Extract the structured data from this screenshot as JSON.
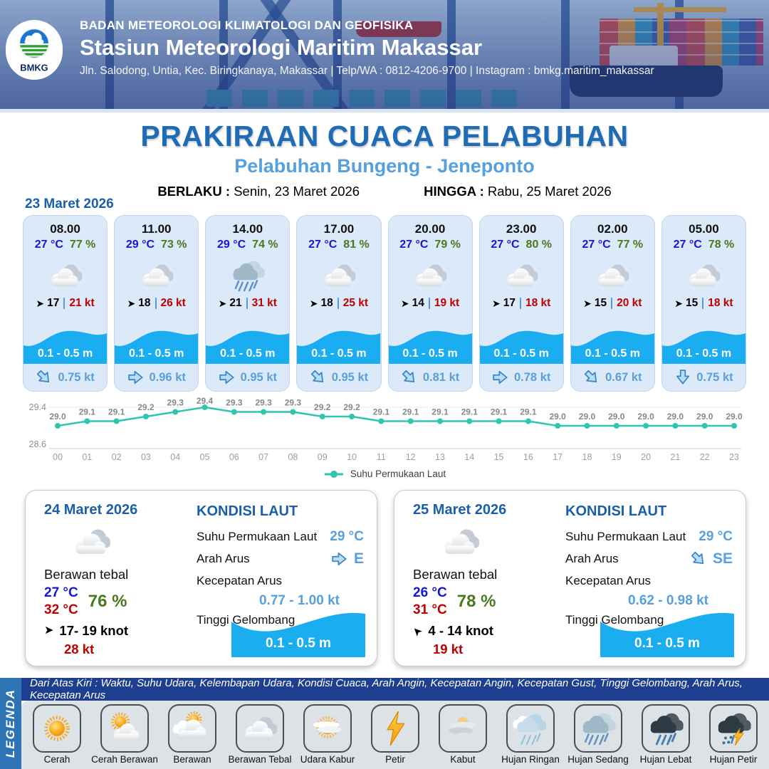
{
  "header": {
    "logo_text": "BMKG",
    "agency": "BADAN METEOROLOGI KLIMATOLOGI DAN GEOFISIKA",
    "station": "Stasiun Meteorologi Maritim Makassar",
    "contact": "Jln. Salodong, Untia, Kec. Biringkanaya, Makassar | Telp/WA : 0812-4206-9700 | Instagram : bmkg.maritim_makassar"
  },
  "title": {
    "main": "PRAKIRAAN CUACA PELABUHAN",
    "sub": "Pelabuhan Bungeng - Jeneponto",
    "berlaku_label": "BERLAKU :",
    "berlaku": "Senin, 23 Maret 2026",
    "hingga_label": "HINGGA :",
    "hingga": "Rabu, 25 Maret 2026"
  },
  "icons": {
    "wind_arrow": "➤"
  },
  "hourly": {
    "date": "23 Maret 2026",
    "cards": [
      {
        "time": "08.00",
        "temp": "27 °C",
        "humidity": "77 %",
        "icon": "berawan-tebal",
        "wind_dir": "E",
        "wind": "17",
        "gust": "21 kt",
        "wave": "0.1 - 0.5 m",
        "current_dir": "SE",
        "current": "0.75 kt"
      },
      {
        "time": "11.00",
        "temp": "29 °C",
        "humidity": "73 %",
        "icon": "berawan-tebal",
        "wind_dir": "E",
        "wind": "18",
        "gust": "26 kt",
        "wave": "0.1 - 0.5 m",
        "current_dir": "E",
        "current": "0.96 kt"
      },
      {
        "time": "14.00",
        "temp": "29 °C",
        "humidity": "74 %",
        "icon": "hujan-sedang",
        "wind_dir": "E",
        "wind": "21",
        "gust": "31 kt",
        "wave": "0.1 - 0.5 m",
        "current_dir": "E",
        "current": "0.95 kt"
      },
      {
        "time": "17.00",
        "temp": "27 °C",
        "humidity": "81 %",
        "icon": "berawan-tebal",
        "wind_dir": "E",
        "wind": "18",
        "gust": "25 kt",
        "wave": "0.1 - 0.5 m",
        "current_dir": "SE",
        "current": "0.95 kt"
      },
      {
        "time": "20.00",
        "temp": "27 °C",
        "humidity": "79 %",
        "icon": "berawan-tebal",
        "wind_dir": "E",
        "wind": "14",
        "gust": "19 kt",
        "wave": "0.1 - 0.5 m",
        "current_dir": "SE",
        "current": "0.81 kt"
      },
      {
        "time": "23.00",
        "temp": "27 °C",
        "humidity": "80 %",
        "icon": "berawan-tebal",
        "wind_dir": "E",
        "wind": "17",
        "gust": "18 kt",
        "wave": "0.1 - 0.5 m",
        "current_dir": "E",
        "current": "0.78 kt"
      },
      {
        "time": "02.00",
        "temp": "27 °C",
        "humidity": "77 %",
        "icon": "berawan-tebal",
        "wind_dir": "E",
        "wind": "15",
        "gust": "20 kt",
        "wave": "0.1 - 0.5 m",
        "current_dir": "SE",
        "current": "0.67 kt"
      },
      {
        "time": "05.00",
        "temp": "27 °C",
        "humidity": "78 %",
        "icon": "berawan-tebal",
        "wind_dir": "E",
        "wind": "15",
        "gust": "18 kt",
        "wave": "0.1 - 0.5 m",
        "current_dir": "S",
        "current": "0.75 kt"
      }
    ]
  },
  "chart_data": {
    "type": "line",
    "x": [
      "00",
      "01",
      "02",
      "03",
      "04",
      "05",
      "06",
      "07",
      "08",
      "09",
      "10",
      "11",
      "12",
      "13",
      "14",
      "15",
      "16",
      "17",
      "18",
      "19",
      "20",
      "21",
      "22",
      "23"
    ],
    "series": [
      {
        "name": "Suhu Permukaan Laut",
        "values": [
          29.0,
          29.1,
          29.1,
          29.2,
          29.3,
          29.4,
          29.3,
          29.3,
          29.3,
          29.2,
          29.2,
          29.1,
          29.1,
          29.1,
          29.1,
          29.1,
          29.1,
          29.0,
          29.0,
          29.0,
          29.0,
          29.0,
          29.0,
          29.0
        ]
      }
    ],
    "ylim": [
      28.6,
      29.4
    ],
    "y_ticks": [
      "29.4",
      "28.6"
    ],
    "line_color": "#2fc5b0",
    "legend_position": "bottom",
    "grid": "minimal"
  },
  "daily": {
    "cards": [
      {
        "date": "24 Maret 2026",
        "icon": "berawan-tebal",
        "condition": "Berawan tebal",
        "temp_min": "27 °C",
        "temp_max": "32 °C",
        "humidity": "76 %",
        "wind_dir": "E",
        "wind": "17- 19 knot",
        "gust": "28 kt",
        "sea": {
          "title": "KONDISI LAUT",
          "sst_label": "Suhu Permukaan Laut",
          "sst": "29 °C",
          "arah_label": "Arah Arus",
          "arah": "E",
          "kec_label": "Kecepatan Arus",
          "kec": "0.77 - 1.00 kt",
          "tinggi_label": "Tinggi Gelombang",
          "tinggi": "0.1 - 0.5 m"
        }
      },
      {
        "date": "25 Maret 2026",
        "icon": "berawan-tebal",
        "condition": "Berawan tebal",
        "temp_min": "26 °C",
        "temp_max": "31 °C",
        "humidity": "78 %",
        "wind_dir": "NW",
        "wind": "4  - 14 knot",
        "gust": "19 kt",
        "sea": {
          "title": "KONDISI LAUT",
          "sst_label": "Suhu Permukaan Laut",
          "sst": "29 °C",
          "arah_label": "Arah Arus",
          "arah": "SE",
          "kec_label": "Kecepatan Arus",
          "kec": "0.62  - 0.98 kt",
          "tinggi_label": "Tinggi Gelombang",
          "tinggi": "0.1 - 0.5 m"
        }
      }
    ]
  },
  "legend": {
    "title": "LEGENDA",
    "caption": "Dari Atas Kiri : Waktu, Suhu Udara, Kelembapan Udara, Kondisi Cuaca, Arah Angin, Kecepatan Angin, Kecepatan Gust, Tinggi Gelombang, Arah Arus, Kecepatan Arus",
    "items": [
      {
        "label": "Cerah",
        "icon": "cerah"
      },
      {
        "label": "Cerah Berawan",
        "icon": "cerah-berawan"
      },
      {
        "label": "Berawan",
        "icon": "berawan"
      },
      {
        "label": "Berawan Tebal",
        "icon": "berawan-tebal"
      },
      {
        "label": "Udara Kabur",
        "icon": "udara-kabur"
      },
      {
        "label": "Petir",
        "icon": "petir"
      },
      {
        "label": "Kabut",
        "icon": "kabut"
      },
      {
        "label": "Hujan Ringan",
        "icon": "hujan-ringan"
      },
      {
        "label": "Hujan Sedang",
        "icon": "hujan-sedang"
      },
      {
        "label": "Hujan Lebat",
        "icon": "hujan-lebat"
      },
      {
        "label": "Hujan Petir",
        "icon": "hujan-petir"
      }
    ]
  },
  "colors": {
    "accent_blue": "#1e6cb5",
    "light_blue": "#55a0dd",
    "temp_blue": "#1414dd",
    "humidity_green": "#4a7a1e",
    "gust_red": "#c00000",
    "wave_blue": "#1aaef0",
    "sst_teal": "#2fc5b0",
    "legend_bar": "#1e3f8f",
    "legenda_strip": "#2e74b5"
  }
}
